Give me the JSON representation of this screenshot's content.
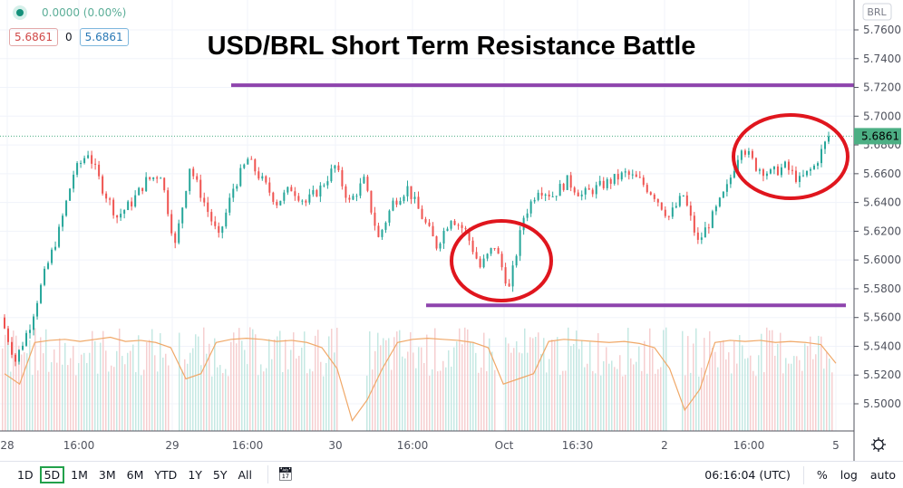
{
  "legend": {
    "change": "0.0000 (0.00%)",
    "bid": "5.6861",
    "spread": "0",
    "ask": "5.6861"
  },
  "title": "USD/BRL Short Term Resistance Battle",
  "currency_label": "BRL",
  "colors": {
    "up": "#26a69a",
    "down": "#ef5350",
    "resistance": "#8e44ad",
    "circle": "#e0161e",
    "volume_ma": "#f0a868",
    "last_price": "#4caf84"
  },
  "chart_data": {
    "type": "candlestick",
    "title": "USD/BRL Short Term Resistance Battle",
    "ylim": [
      5.48,
      5.78
    ],
    "y_ticks": [
      "5.7600",
      "5.7400",
      "5.7200",
      "5.7000",
      "5.6800",
      "5.6600",
      "5.6400",
      "5.6200",
      "5.6000",
      "5.5800",
      "5.5600",
      "5.5400",
      "5.5200",
      "5.5000"
    ],
    "x_ticks": [
      "28",
      "16:00",
      "29",
      "16:00",
      "30",
      "16:00",
      "Oct",
      "16:30",
      "2",
      "16:00",
      "5"
    ],
    "closes": [
      5.56,
      5.53,
      5.555,
      5.59,
      5.62,
      5.66,
      5.675,
      5.65,
      5.63,
      5.64,
      5.655,
      5.66,
      5.61,
      5.665,
      5.64,
      5.615,
      5.65,
      5.67,
      5.655,
      5.64,
      5.65,
      5.64,
      5.65,
      5.665,
      5.64,
      5.655,
      5.615,
      5.64,
      5.65,
      5.63,
      5.61,
      5.63,
      5.62,
      5.595,
      5.61,
      5.58,
      5.63,
      5.65,
      5.645,
      5.655,
      5.645,
      5.65,
      5.655,
      5.66,
      5.655,
      5.645,
      5.63,
      5.645,
      5.612,
      5.63,
      5.65,
      5.68,
      5.665,
      5.66,
      5.665,
      5.655,
      5.665,
      5.686
    ],
    "last_price": "5.6861",
    "resistance_levels": [
      5.7215,
      5.5685
    ],
    "volume_ma_relative": [
      0.55,
      0.45,
      0.85,
      0.87,
      0.88,
      0.86,
      0.88,
      0.9,
      0.86,
      0.87,
      0.85,
      0.8,
      0.5,
      0.55,
      0.85,
      0.88,
      0.89,
      0.88,
      0.86,
      0.87,
      0.85,
      0.8,
      0.6,
      0.1,
      0.3,
      0.6,
      0.85,
      0.88,
      0.89,
      0.88,
      0.87,
      0.85,
      0.8,
      0.45,
      0.5,
      0.55,
      0.86,
      0.88,
      0.87,
      0.86,
      0.85,
      0.86,
      0.84,
      0.8,
      0.6,
      0.2,
      0.4,
      0.85,
      0.87,
      0.86,
      0.87,
      0.85,
      0.86,
      0.85,
      0.83,
      0.65
    ]
  },
  "axis": {
    "settings_icon": "gear-icon"
  },
  "toolbar": {
    "ranges": [
      "1D",
      "5D",
      "1M",
      "3M",
      "6M",
      "YTD",
      "1Y",
      "5Y",
      "All"
    ],
    "active": "5D",
    "time": "06:16:04 (UTC)",
    "percent": "%",
    "log": "log",
    "auto": "auto"
  }
}
